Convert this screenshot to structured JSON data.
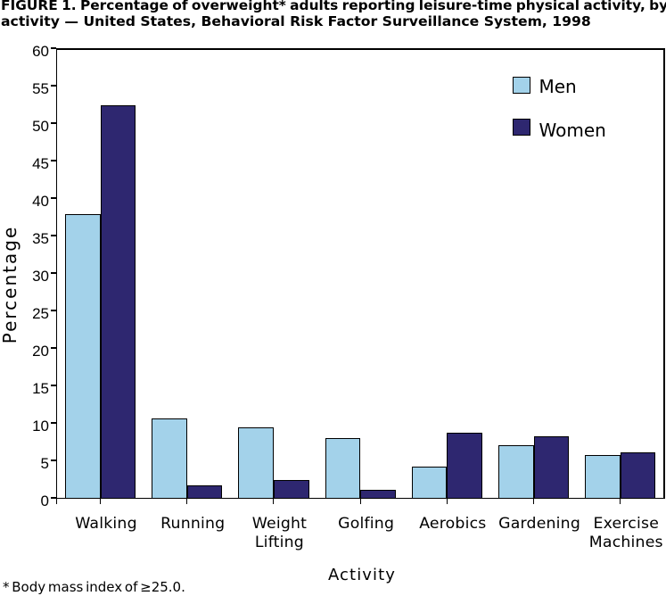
{
  "figure": {
    "title_line1": "FIGURE 1. Percentage of overweight* adults reporting leisure-time physical activity, by",
    "title_line2": "activity — United States, Behavioral Risk Factor Surveillance System, 1998",
    "footnote": "* Body mass index of ≥25.0."
  },
  "chart_data": {
    "type": "bar",
    "title": "FIGURE 1. Percentage of overweight* adults reporting leisure-time physical activity, by activity — United States, Behavioral Risk Factor Surveillance System, 1998",
    "categories": [
      "Walking",
      "Running",
      "Weight Lifting",
      "Golfing",
      "Aerobics",
      "Gardening",
      "Exercise Machines"
    ],
    "series": [
      {
        "name": "Men",
        "color": "#a3d2ea",
        "values": [
          37.8,
          10.6,
          9.4,
          8.0,
          4.2,
          7.0,
          5.7
        ]
      },
      {
        "name": "Women",
        "color": "#2e2770",
        "values": [
          52.4,
          1.7,
          2.4,
          1.1,
          8.7,
          8.2,
          6.1
        ]
      }
    ],
    "xlabel": "Activity",
    "ylabel": "Percentage",
    "ylim": [
      0,
      60
    ],
    "ytick_step": 5,
    "grid": false,
    "legend_position": "top-right",
    "bar_outline_color": "#000000",
    "footnote": "* Body mass index of ≥25.0."
  }
}
